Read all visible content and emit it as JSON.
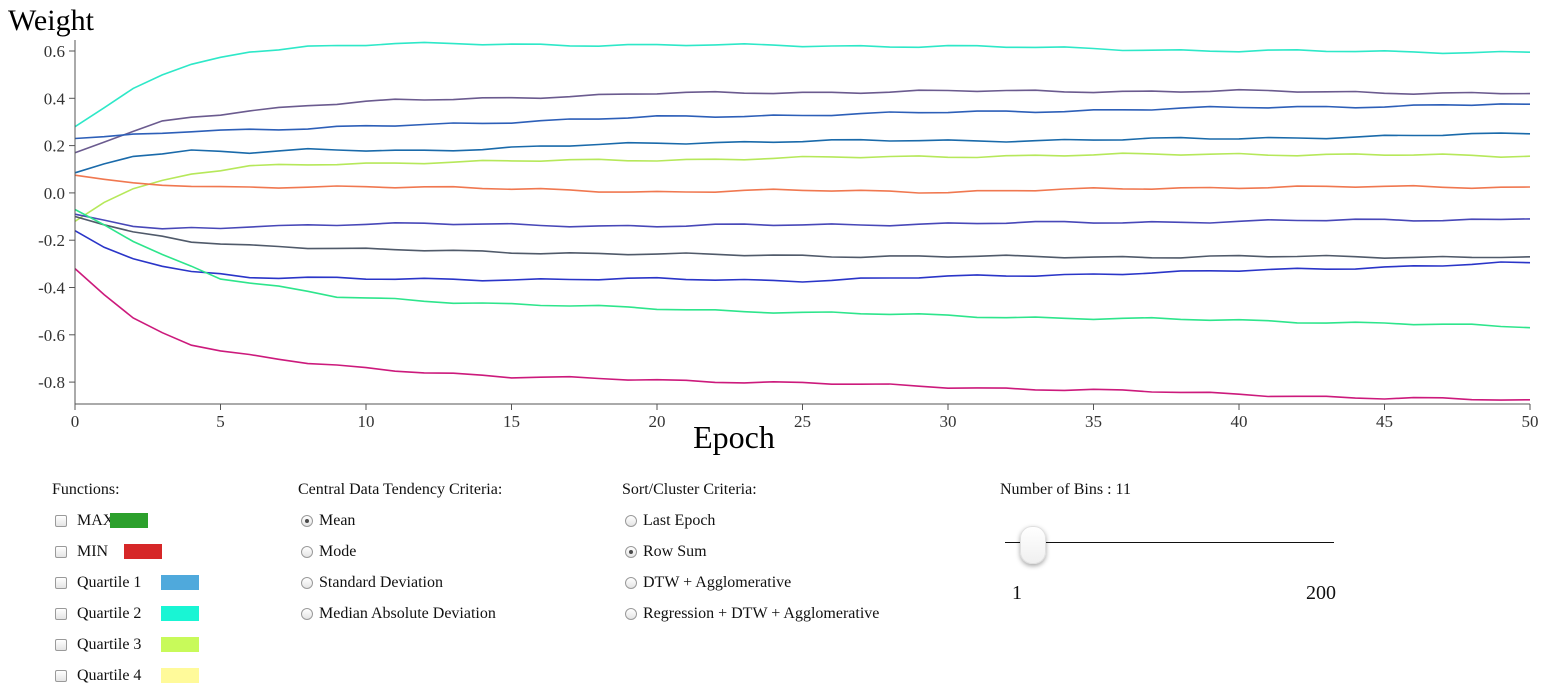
{
  "chart_data": {
    "type": "line",
    "ylabel": "Weight",
    "xlabel": "Epoch",
    "xlim": [
      0,
      50
    ],
    "ylim": [
      -0.9,
      0.65
    ],
    "x_ticks": [
      0,
      5,
      10,
      15,
      20,
      25,
      30,
      35,
      40,
      45,
      50
    ],
    "y_ticks": [
      0.6,
      0.4,
      0.2,
      0.0,
      -0.2,
      -0.4,
      -0.6,
      -0.8
    ],
    "y_tick_labels": [
      "0.6",
      "0.4",
      "0.2",
      "0.0",
      "-0.2",
      "-0.4",
      "-0.6",
      "-0.8"
    ],
    "grid": false,
    "series": [
      {
        "color": "#2ee8c8",
        "anchors": [
          [
            0,
            0.28
          ],
          [
            2,
            0.44
          ],
          [
            3,
            0.5
          ],
          [
            4,
            0.54
          ],
          [
            6,
            0.6
          ],
          [
            8,
            0.62
          ],
          [
            11,
            0.63
          ],
          [
            20,
            0.625
          ],
          [
            30,
            0.62
          ],
          [
            40,
            0.6
          ],
          [
            50,
            0.595
          ]
        ]
      },
      {
        "color": "#6b5b8f",
        "anchors": [
          [
            0,
            0.17
          ],
          [
            2,
            0.26
          ],
          [
            3,
            0.3
          ],
          [
            4,
            0.32
          ],
          [
            6,
            0.35
          ],
          [
            8,
            0.37
          ],
          [
            11,
            0.39
          ],
          [
            20,
            0.42
          ],
          [
            30,
            0.43
          ],
          [
            40,
            0.43
          ],
          [
            50,
            0.42
          ]
        ]
      },
      {
        "color": "#2d5fb8",
        "anchors": [
          [
            0,
            0.23
          ],
          [
            2,
            0.245
          ],
          [
            4,
            0.265
          ],
          [
            8,
            0.27
          ],
          [
            12,
            0.29
          ],
          [
            20,
            0.32
          ],
          [
            30,
            0.34
          ],
          [
            40,
            0.36
          ],
          [
            50,
            0.375
          ]
        ]
      },
      {
        "color": "#1a6aaa",
        "anchors": [
          [
            0,
            0.085
          ],
          [
            2,
            0.16
          ],
          [
            4,
            0.18
          ],
          [
            6,
            0.17
          ],
          [
            8,
            0.18
          ],
          [
            12,
            0.18
          ],
          [
            20,
            0.21
          ],
          [
            25,
            0.22
          ],
          [
            30,
            0.22
          ],
          [
            40,
            0.23
          ],
          [
            50,
            0.25
          ]
        ]
      },
      {
        "color": "#b6e85a",
        "anchors": [
          [
            0,
            -0.12
          ],
          [
            1,
            -0.04
          ],
          [
            2,
            0.02
          ],
          [
            4,
            0.08
          ],
          [
            6,
            0.11
          ],
          [
            8,
            0.12
          ],
          [
            12,
            0.13
          ],
          [
            20,
            0.14
          ],
          [
            30,
            0.155
          ],
          [
            40,
            0.165
          ],
          [
            50,
            0.155
          ]
        ]
      },
      {
        "color": "#f07850",
        "anchors": [
          [
            0,
            0.075
          ],
          [
            2,
            0.04
          ],
          [
            5,
            0.02
          ],
          [
            10,
            0.03
          ],
          [
            15,
            0.015
          ],
          [
            20,
            0.005
          ],
          [
            25,
            0.01
          ],
          [
            30,
            0.005
          ],
          [
            35,
            0.015
          ],
          [
            40,
            0.025
          ],
          [
            50,
            0.025
          ]
        ]
      },
      {
        "color": "#4848b8",
        "anchors": [
          [
            0,
            -0.09
          ],
          [
            2,
            -0.14
          ],
          [
            3,
            -0.155
          ],
          [
            5,
            -0.15
          ],
          [
            6,
            -0.14
          ],
          [
            10,
            -0.13
          ],
          [
            20,
            -0.14
          ],
          [
            30,
            -0.13
          ],
          [
            40,
            -0.12
          ],
          [
            50,
            -0.11
          ]
        ]
      },
      {
        "color": "#505a6a",
        "anchors": [
          [
            0,
            -0.1
          ],
          [
            2,
            -0.17
          ],
          [
            4,
            -0.205
          ],
          [
            6,
            -0.22
          ],
          [
            10,
            -0.24
          ],
          [
            20,
            -0.26
          ],
          [
            30,
            -0.27
          ],
          [
            40,
            -0.27
          ],
          [
            50,
            -0.27
          ]
        ]
      },
      {
        "color": "#2a35c8",
        "anchors": [
          [
            0,
            -0.16
          ],
          [
            1,
            -0.23
          ],
          [
            2,
            -0.28
          ],
          [
            4,
            -0.33
          ],
          [
            6,
            -0.355
          ],
          [
            10,
            -0.365
          ],
          [
            20,
            -0.365
          ],
          [
            25,
            -0.37
          ],
          [
            30,
            -0.355
          ],
          [
            40,
            -0.33
          ],
          [
            50,
            -0.295
          ]
        ]
      },
      {
        "color": "#2ee58c",
        "anchors": [
          [
            0,
            -0.07
          ],
          [
            2,
            -0.2
          ],
          [
            3,
            -0.26
          ],
          [
            4,
            -0.31
          ],
          [
            5,
            -0.36
          ],
          [
            7,
            -0.4
          ],
          [
            9,
            -0.44
          ],
          [
            15,
            -0.47
          ],
          [
            20,
            -0.49
          ],
          [
            30,
            -0.52
          ],
          [
            40,
            -0.54
          ],
          [
            45,
            -0.55
          ],
          [
            50,
            -0.57
          ]
        ]
      },
      {
        "color": "#cc1a7c",
        "anchors": [
          [
            0,
            -0.32
          ],
          [
            1,
            -0.43
          ],
          [
            2,
            -0.53
          ],
          [
            3,
            -0.59
          ],
          [
            4,
            -0.64
          ],
          [
            5,
            -0.67
          ],
          [
            6,
            -0.69
          ],
          [
            8,
            -0.72
          ],
          [
            10,
            -0.74
          ],
          [
            15,
            -0.78
          ],
          [
            20,
            -0.79
          ],
          [
            30,
            -0.82
          ],
          [
            40,
            -0.85
          ],
          [
            45,
            -0.87
          ],
          [
            50,
            -0.875
          ]
        ]
      }
    ]
  },
  "controls": {
    "functions": {
      "title": "Functions:",
      "items": [
        {
          "label": "MAX",
          "color": "#2ca02c"
        },
        {
          "label": "MIN",
          "color": "#d62728"
        },
        {
          "label": "Quartile 1",
          "color": "#4fa9dc"
        },
        {
          "label": "Quartile 2",
          "color": "#19f5d4"
        },
        {
          "label": "Quartile 3",
          "color": "#c8fa5a"
        },
        {
          "label": "Quartile 4",
          "color": "#fffa9a"
        }
      ]
    },
    "central": {
      "title": "Central Data Tendency Criteria:",
      "options": [
        "Mean",
        "Mode",
        "Standard Deviation",
        "Median Absolute Deviation"
      ],
      "selected": "Mean"
    },
    "sort": {
      "title": "Sort/Cluster Criteria:",
      "options": [
        "Last Epoch",
        "Row Sum",
        "DTW + Agglomerative",
        "Regression + DTW + Agglomerative"
      ],
      "selected": "Row Sum"
    },
    "bins": {
      "title": "Number of Bins : 11",
      "value": 11,
      "min_label": "1",
      "max_label": "200"
    }
  }
}
